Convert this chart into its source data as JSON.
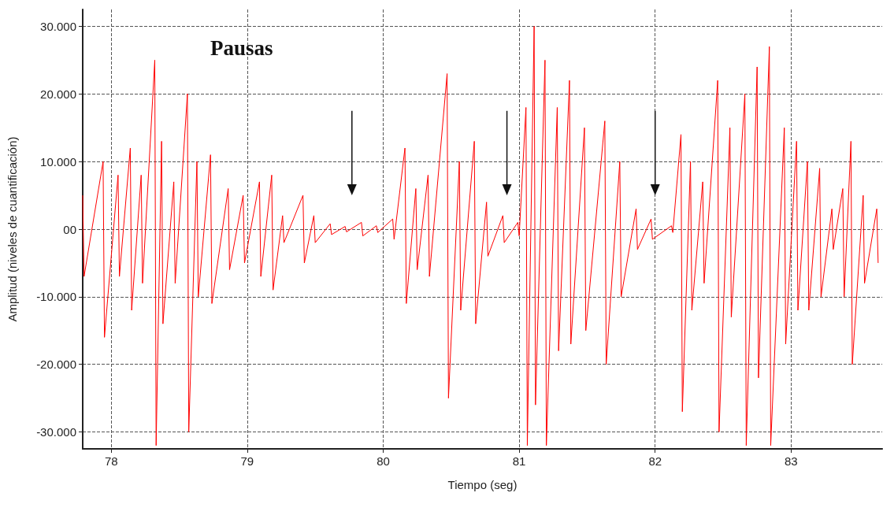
{
  "chart_data": {
    "type": "line",
    "title": "Pausas",
    "xlabel": "Tiempo (seg)",
    "ylabel": "Amplitud (niveles de cuantificación)",
    "xlim": [
      77.79,
      83.67
    ],
    "xticks": [
      78,
      79,
      80,
      81,
      82,
      83
    ],
    "ylim": [
      -32500,
      32500
    ],
    "yticks": [
      {
        "value": -30000,
        "label": "-30.000"
      },
      {
        "value": -20000,
        "label": "-20.000"
      },
      {
        "value": -10000,
        "label": "-10.000"
      },
      {
        "value": 0,
        "label": "00"
      },
      {
        "value": 10000,
        "label": "10.000"
      },
      {
        "value": 20000,
        "label": "20.000"
      },
      {
        "value": 30000,
        "label": "30.000"
      }
    ],
    "grid": true,
    "series": [
      {
        "color": "#ff0000",
        "x": [
          77.79,
          77.8,
          77.94,
          77.95,
          78.05,
          78.06,
          78.14,
          78.15,
          78.22,
          78.23,
          78.32,
          78.33,
          78.37,
          78.38,
          78.46,
          78.47,
          78.56,
          78.57,
          78.63,
          78.64,
          78.73,
          78.74,
          78.86,
          78.87,
          78.97,
          78.98,
          79.09,
          79.1,
          79.18,
          79.19,
          79.26,
          79.27,
          79.41,
          79.42,
          79.49,
          79.5,
          79.61,
          79.62,
          79.72,
          79.73,
          79.84,
          79.85,
          79.95,
          79.96,
          80.07,
          80.08,
          80.16,
          80.17,
          80.24,
          80.25,
          80.33,
          80.34,
          80.47,
          80.48,
          80.56,
          80.57,
          80.67,
          80.68,
          80.76,
          80.77,
          80.88,
          80.89,
          80.99,
          81.0,
          81.05,
          81.06,
          81.11,
          81.12,
          81.19,
          81.2,
          81.28,
          81.29,
          81.37,
          81.38,
          81.48,
          81.49,
          81.63,
          81.64,
          81.74,
          81.75,
          81.86,
          81.87,
          81.97,
          81.98,
          82.12,
          82.13,
          82.19,
          82.2,
          82.26,
          82.27,
          82.35,
          82.36,
          82.46,
          82.47,
          82.55,
          82.56,
          82.66,
          82.67,
          82.75,
          82.76,
          82.84,
          82.85,
          82.95,
          82.96,
          83.04,
          83.05,
          83.12,
          83.13,
          83.21,
          83.22,
          83.3,
          83.31,
          83.38,
          83.39,
          83.44,
          83.45,
          83.53,
          83.54,
          83.63,
          83.64
        ],
        "values": [
          5000,
          -7000,
          10000,
          -16000,
          8000,
          -7000,
          12000,
          -12000,
          8000,
          -8000,
          25000,
          -32000,
          13000,
          -14000,
          7000,
          -8000,
          20000,
          -30000,
          10000,
          -10000,
          11000,
          -11000,
          6000,
          -6000,
          5000,
          -5000,
          7000,
          -7000,
          8000,
          -9000,
          2000,
          -2000,
          5000,
          -5000,
          2000,
          -2000,
          800,
          -800,
          400,
          -400,
          1000,
          -1000,
          500,
          -500,
          1500,
          -1500,
          12000,
          -11000,
          6000,
          -6000,
          8000,
          -7000,
          23000,
          -25000,
          10000,
          -12000,
          13000,
          -14000,
          4000,
          -4000,
          2000,
          -2000,
          1000,
          -1000,
          18000,
          -32000,
          30000,
          -26000,
          25000,
          -32000,
          18000,
          -18000,
          22000,
          -17000,
          15000,
          -15000,
          16000,
          -20000,
          10000,
          -10000,
          3000,
          -3000,
          1500,
          -1500,
          500,
          -500,
          14000,
          -27000,
          10000,
          -12000,
          7000,
          -8000,
          22000,
          -30000,
          15000,
          -13000,
          20000,
          -32000,
          24000,
          -22000,
          27000,
          -32000,
          15000,
          -17000,
          13000,
          -12000,
          10000,
          -12000,
          9000,
          -10000,
          3000,
          -3000,
          6000,
          -10000,
          13000,
          -20000,
          5000,
          -8000,
          3000,
          -5000
        ]
      }
    ]
  }
}
